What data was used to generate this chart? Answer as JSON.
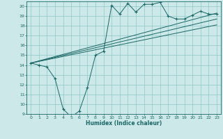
{
  "xlabel": "Humidex (Indice chaleur)",
  "bg_color": "#cce8e8",
  "grid_color": "#8cc8c8",
  "line_color": "#1a6666",
  "xlim": [
    -0.5,
    23.5
  ],
  "ylim": [
    9,
    20.5
  ],
  "xticks": [
    0,
    1,
    2,
    3,
    4,
    5,
    6,
    7,
    8,
    9,
    10,
    11,
    12,
    13,
    14,
    15,
    16,
    17,
    18,
    19,
    20,
    21,
    22,
    23
  ],
  "yticks": [
    9,
    10,
    11,
    12,
    13,
    14,
    15,
    16,
    17,
    18,
    19,
    20
  ],
  "main_line_x": [
    0,
    1,
    2,
    3,
    4,
    5,
    6,
    7,
    8,
    9,
    10,
    11,
    12,
    13,
    14,
    15,
    16,
    17,
    18,
    19,
    20,
    21,
    22,
    23
  ],
  "main_line_y": [
    14.2,
    14.0,
    13.8,
    12.6,
    9.5,
    8.7,
    9.3,
    11.7,
    15.0,
    15.4,
    20.1,
    19.2,
    20.3,
    19.4,
    20.2,
    20.2,
    20.4,
    19.0,
    18.7,
    18.7,
    19.1,
    19.5,
    19.2,
    19.2
  ],
  "trend1_x": [
    0,
    23
  ],
  "trend1_y": [
    14.2,
    19.3
  ],
  "trend2_x": [
    0,
    23
  ],
  "trend2_y": [
    14.2,
    18.7
  ],
  "trend3_x": [
    0,
    23
  ],
  "trend3_y": [
    14.2,
    18.1
  ]
}
